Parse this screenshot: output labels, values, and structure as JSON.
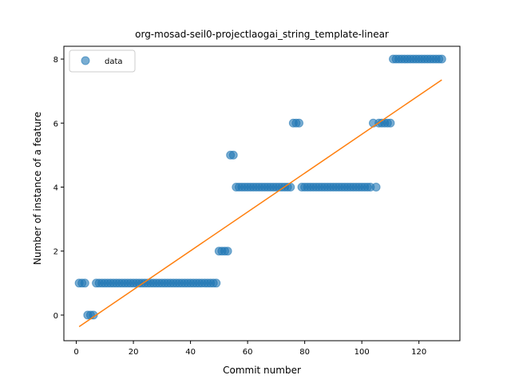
{
  "chart_data": {
    "type": "scatter",
    "title": "org-mosad-seil0-projectlaogai_string_template-linear",
    "xlabel": "Commit number",
    "ylabel": "Number of instance of a feature",
    "xlim": [
      -4.35,
      134.35
    ],
    "ylim": [
      -0.8,
      8.4
    ],
    "xticks": [
      0,
      20,
      40,
      60,
      80,
      100,
      120
    ],
    "yticks": [
      0,
      2,
      4,
      6,
      8
    ],
    "grid": false,
    "legend": {
      "position": "upper-left",
      "entries": [
        "data"
      ]
    },
    "colors": {
      "points": "#1f77b4",
      "fit": "#ff7f0e"
    },
    "series": [
      {
        "name": "data",
        "kind": "scatter",
        "x": [
          1,
          2,
          3,
          4,
          5,
          6,
          7,
          8,
          9,
          10,
          11,
          12,
          13,
          14,
          15,
          16,
          17,
          18,
          19,
          20,
          21,
          22,
          23,
          24,
          25,
          26,
          27,
          28,
          29,
          30,
          31,
          32,
          33,
          34,
          35,
          36,
          37,
          38,
          39,
          40,
          41,
          42,
          43,
          44,
          45,
          46,
          47,
          48,
          49,
          50,
          51,
          52,
          53,
          54,
          55,
          56,
          57,
          58,
          59,
          60,
          61,
          62,
          63,
          64,
          65,
          66,
          67,
          68,
          69,
          70,
          71,
          72,
          73,
          74,
          75,
          76,
          77,
          78,
          79,
          80,
          81,
          82,
          83,
          84,
          85,
          86,
          87,
          88,
          89,
          90,
          91,
          92,
          93,
          94,
          95,
          96,
          97,
          98,
          99,
          100,
          101,
          102,
          103,
          104,
          105,
          106,
          107,
          108,
          109,
          110,
          111,
          112,
          113,
          114,
          115,
          116,
          117,
          118,
          119,
          120,
          121,
          122,
          123,
          124,
          125,
          126,
          127,
          128
        ],
        "y": [
          1,
          1,
          1,
          0,
          0,
          0,
          1,
          1,
          1,
          1,
          1,
          1,
          1,
          1,
          1,
          1,
          1,
          1,
          1,
          1,
          1,
          1,
          1,
          1,
          1,
          1,
          1,
          1,
          1,
          1,
          1,
          1,
          1,
          1,
          1,
          1,
          1,
          1,
          1,
          1,
          1,
          1,
          1,
          1,
          1,
          1,
          1,
          1,
          1,
          2,
          2,
          2,
          2,
          5,
          5,
          4,
          4,
          4,
          4,
          4,
          4,
          4,
          4,
          4,
          4,
          4,
          4,
          4,
          4,
          4,
          4,
          4,
          4,
          4,
          4,
          6,
          6,
          6,
          4,
          4,
          4,
          4,
          4,
          4,
          4,
          4,
          4,
          4,
          4,
          4,
          4,
          4,
          4,
          4,
          4,
          4,
          4,
          4,
          4,
          4,
          4,
          4,
          4,
          6,
          4,
          6,
          6,
          6,
          6,
          6,
          8,
          8,
          8,
          8,
          8,
          8,
          8,
          8,
          8,
          8,
          8,
          8,
          8,
          8,
          8,
          8,
          8,
          8
        ]
      },
      {
        "name": "",
        "kind": "line",
        "x": [
          1,
          128
        ],
        "y": [
          -0.36,
          7.35
        ]
      }
    ]
  }
}
